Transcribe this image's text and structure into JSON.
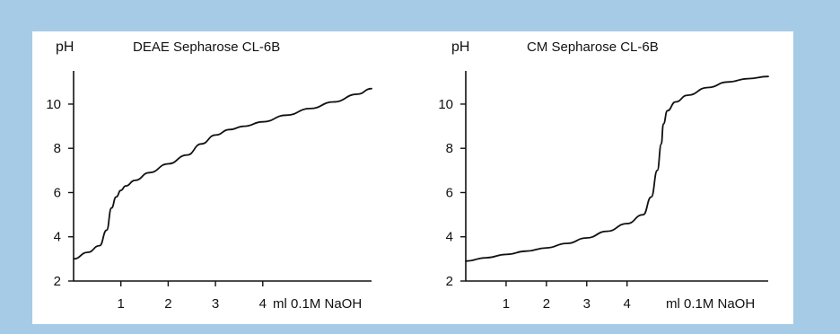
{
  "colors": {
    "background": "#a6cbe6",
    "panel": "#ffffff",
    "ink": "#111111"
  },
  "chart_data": [
    {
      "type": "line",
      "title": "DEAE Sepharose CL-6B",
      "ylabel": "pH",
      "xlabel": "ml 0.1M NaOH",
      "xlim": [
        0,
        6.3
      ],
      "ylim": [
        2,
        11.5
      ],
      "xticks": [
        1,
        2,
        3,
        4
      ],
      "yticks": [
        2,
        4,
        6,
        8,
        10
      ],
      "grid": false,
      "series": [
        {
          "x": [
            0,
            0.3,
            0.55,
            0.7,
            0.8,
            0.9,
            1.0,
            1.1,
            1.3,
            1.6,
            2.0,
            2.4,
            2.7,
            3.0,
            3.3,
            3.6,
            4.0,
            4.5,
            5.0,
            5.5,
            6.0,
            6.3
          ],
          "y": [
            3.0,
            3.3,
            3.6,
            4.3,
            5.3,
            5.8,
            6.1,
            6.3,
            6.55,
            6.9,
            7.3,
            7.7,
            8.2,
            8.6,
            8.85,
            9.0,
            9.2,
            9.5,
            9.8,
            10.1,
            10.45,
            10.7
          ]
        }
      ]
    },
    {
      "type": "line",
      "title": "CM Sepharose CL-6B",
      "ylabel": "pH",
      "xlabel": "ml 0.1M NaOH",
      "xlim": [
        0,
        7.5
      ],
      "ylim": [
        2,
        11.5
      ],
      "xticks": [
        1,
        2,
        3,
        4
      ],
      "yticks": [
        2,
        4,
        6,
        8,
        10
      ],
      "grid": false,
      "series": [
        {
          "x": [
            0,
            0.5,
            1.0,
            1.5,
            2.0,
            2.5,
            3.0,
            3.5,
            4.0,
            4.4,
            4.6,
            4.75,
            4.85,
            4.9,
            5.0,
            5.2,
            5.5,
            6.0,
            6.5,
            7.0,
            7.5
          ],
          "y": [
            2.9,
            3.05,
            3.2,
            3.35,
            3.5,
            3.7,
            3.95,
            4.25,
            4.6,
            5.0,
            5.8,
            7.0,
            8.2,
            9.1,
            9.7,
            10.1,
            10.4,
            10.75,
            11.0,
            11.15,
            11.25
          ]
        }
      ]
    }
  ]
}
